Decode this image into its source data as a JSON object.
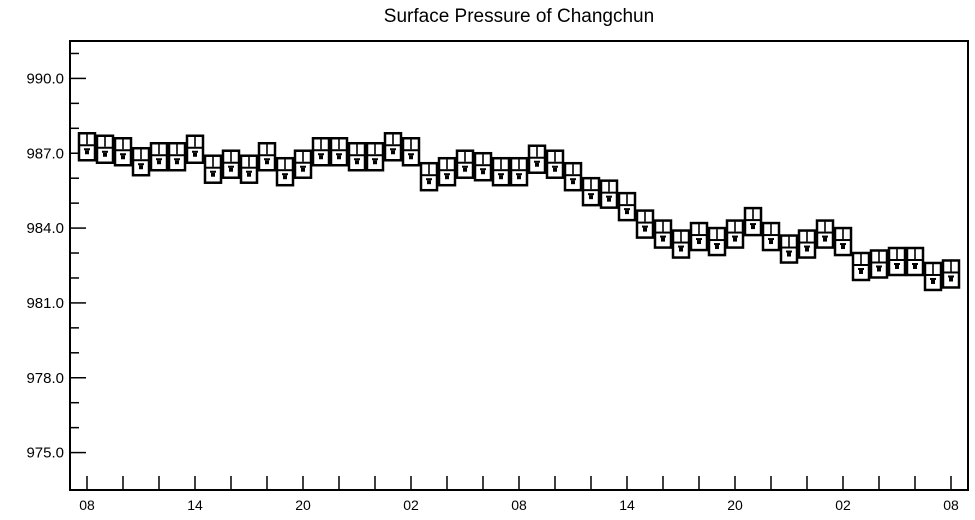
{
  "chart_data": {
    "type": "boxplot",
    "title": "Surface Pressure of Changchun",
    "xlabel": "",
    "ylabel": "",
    "ylim": [
      973.5,
      991.5
    ],
    "y_ticks": [
      975.0,
      978.0,
      981.0,
      984.0,
      987.0,
      990.0
    ],
    "y_tick_labels": [
      "975.0",
      "978.0",
      "981.0",
      "984.0",
      "987.0",
      "990.0"
    ],
    "x_tick_labels": [
      "08",
      "14",
      "20",
      "02",
      "08",
      "14",
      "20",
      "02",
      "08"
    ],
    "x_tick_label_every": 6,
    "x_count": 49,
    "box_color": "#000000",
    "series": [
      {
        "values": [
          987.2,
          987.1,
          987.0,
          986.6,
          986.8,
          986.8,
          987.1,
          986.3,
          986.5,
          986.3,
          986.8,
          986.2,
          986.5,
          987.0,
          987.0,
          986.8,
          986.8,
          987.2,
          987.0,
          986.0,
          986.2,
          986.5,
          986.4,
          986.2,
          986.2,
          986.7,
          986.5,
          986.0,
          985.4,
          985.3,
          984.8,
          984.1,
          983.7,
          983.3,
          983.6,
          983.4,
          983.7,
          984.2,
          983.6,
          983.1,
          983.3,
          983.7,
          983.4,
          982.4,
          982.5,
          982.6,
          982.6,
          982.0,
          982.1
        ]
      }
    ]
  }
}
